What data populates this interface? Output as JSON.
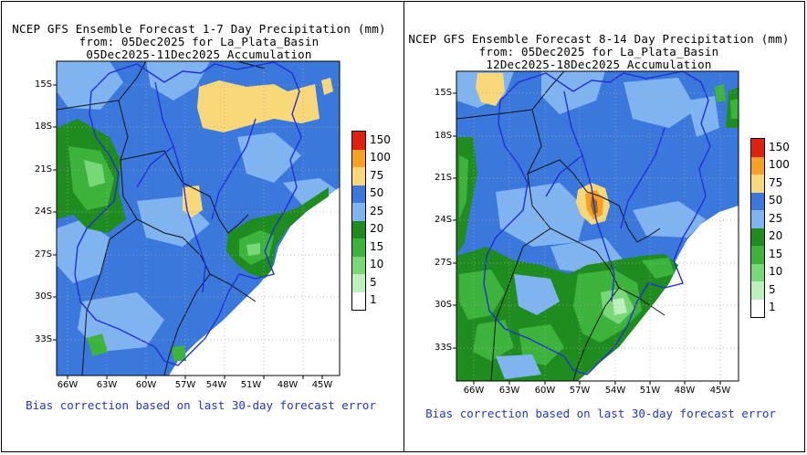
{
  "left_panel": {
    "title": [
      "NCEP GFS Ensemble Forecast 1-7 Day Precipitation (mm)",
      "from: 05Dec2025   for La_Plata_Basin",
      "05Dec2025-11Dec2025 Accumulation"
    ],
    "lat_labels": [
      "15S",
      "18S",
      "21S",
      "24S",
      "27S",
      "30S",
      "33S"
    ],
    "lon_labels": [
      "66W",
      "63W",
      "60W",
      "57W",
      "54W",
      "51W",
      "48W",
      "45W"
    ],
    "footnote": "Bias correction based on last 30-day forecast error"
  },
  "right_panel": {
    "title": [
      "NCEP GFS Ensemble Forecast 8-14 Day Precipitation (mm)",
      "from: 05Dec2025   for La_Plata_Basin",
      "12Dec2025-18Dec2025 Accumulation"
    ],
    "lat_labels": [
      "15S",
      "18S",
      "21S",
      "24S",
      "27S",
      "30S",
      "33S"
    ],
    "lon_labels": [
      "66W",
      "63W",
      "60W",
      "57W",
      "54W",
      "51W",
      "48W",
      "45W"
    ],
    "footnote": "Bias correction based on last 30-day forecast error"
  },
  "legend": {
    "labels": [
      "150",
      "100",
      "75",
      "50",
      "25",
      "20",
      "15",
      "10",
      "5",
      "1"
    ],
    "colors": [
      "#e02010",
      "#f8a020",
      "#f8d878",
      "#3a78dc",
      "#80b4f0",
      "#1e8c1e",
      "#3cb43c",
      "#78d878",
      "#bcf0bc",
      "#ffffff"
    ]
  }
}
